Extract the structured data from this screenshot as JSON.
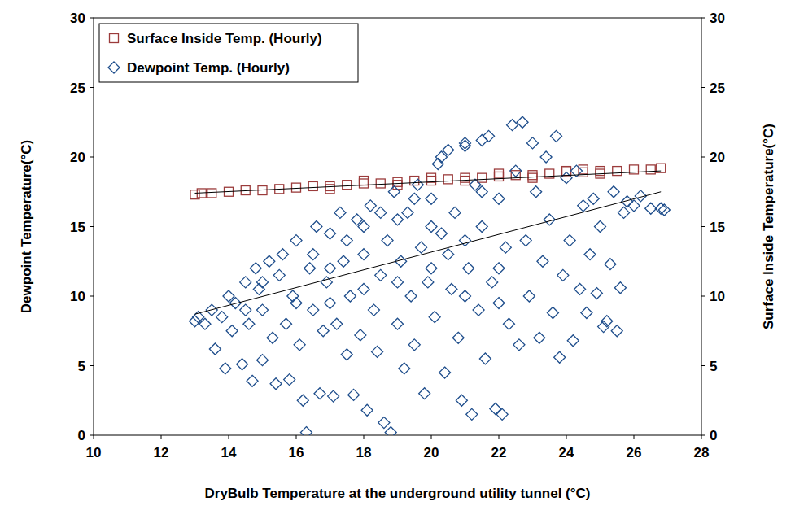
{
  "chart_data": {
    "type": "scatter",
    "x_label": "DryBulb Temperature at the underground utility tunnel (°C)",
    "y_label": "Dewpoint Temperature(°C)",
    "y2_label": "Surface Inside Temperature(°C)",
    "xlim": [
      10,
      28
    ],
    "xticks": [
      10,
      12,
      14,
      16,
      18,
      20,
      22,
      24,
      26,
      28
    ],
    "ylim": [
      0,
      30
    ],
    "yticks": [
      0,
      5,
      10,
      15,
      20,
      25,
      30
    ],
    "y2lim": [
      0,
      30
    ],
    "y2ticks": [
      0,
      5,
      10,
      15,
      20,
      25,
      30
    ],
    "grid": false,
    "legend": "top-left",
    "series": [
      {
        "name": "Surface Inside Temp. (Hourly)",
        "color": "#9b3b3b",
        "marker": "square",
        "axis": "y2",
        "x": [
          13.0,
          13.2,
          13.5,
          14.0,
          14.5,
          15.0,
          15.5,
          16.0,
          16.5,
          17.0,
          17.5,
          18.0,
          18.5,
          19.0,
          19.5,
          20.0,
          20.5,
          21.0,
          21.5,
          22.0,
          22.5,
          23.0,
          23.5,
          24.0,
          24.5,
          25.0,
          25.5,
          26.0,
          26.5,
          26.8,
          17.0,
          18.0,
          19.0,
          20.0,
          21.0,
          22.0,
          23.0,
          24.0,
          25.0,
          24.5
        ],
        "values": [
          17.3,
          17.4,
          17.4,
          17.5,
          17.6,
          17.6,
          17.7,
          17.8,
          17.9,
          17.9,
          18.0,
          18.1,
          18.1,
          18.2,
          18.3,
          18.3,
          18.4,
          18.5,
          18.5,
          18.6,
          18.7,
          18.7,
          18.8,
          18.9,
          18.9,
          19.0,
          19.0,
          19.1,
          19.1,
          19.2,
          17.7,
          18.3,
          18.0,
          18.5,
          18.3,
          18.8,
          18.5,
          19.0,
          18.8,
          19.1
        ],
        "trend": {
          "x": [
            13.0,
            26.8
          ],
          "values": [
            17.4,
            19.0
          ]
        }
      },
      {
        "name": "Dewpoint Temp. (Hourly)",
        "color": "#1f4e8c",
        "marker": "diamond",
        "x": [
          13.0,
          13.1,
          13.3,
          13.5,
          13.6,
          13.8,
          13.9,
          14.0,
          14.1,
          14.2,
          14.4,
          14.5,
          14.6,
          14.7,
          14.8,
          14.9,
          15.0,
          15.0,
          15.2,
          15.3,
          15.4,
          15.5,
          15.6,
          15.7,
          15.8,
          15.9,
          16.0,
          16.1,
          16.2,
          16.3,
          16.4,
          16.5,
          16.6,
          16.7,
          16.8,
          16.9,
          17.0,
          17.1,
          17.2,
          17.3,
          17.4,
          17.5,
          17.6,
          17.7,
          17.8,
          17.9,
          18.0,
          18.1,
          18.2,
          18.3,
          18.4,
          18.5,
          18.6,
          18.7,
          18.8,
          18.9,
          19.0,
          19.1,
          19.2,
          19.3,
          19.4,
          19.5,
          19.6,
          19.7,
          19.8,
          19.9,
          20.0,
          20.1,
          20.2,
          20.3,
          20.4,
          20.5,
          20.6,
          20.7,
          20.8,
          20.9,
          21.0,
          21.1,
          21.2,
          21.3,
          21.4,
          21.5,
          21.6,
          21.7,
          21.8,
          21.9,
          22.0,
          22.1,
          22.2,
          22.3,
          22.4,
          22.5,
          22.6,
          22.7,
          22.8,
          22.9,
          23.0,
          23.1,
          23.2,
          23.3,
          23.4,
          23.5,
          23.6,
          23.7,
          23.8,
          23.9,
          24.0,
          24.1,
          24.2,
          24.3,
          24.4,
          24.5,
          24.6,
          24.7,
          24.8,
          24.9,
          25.0,
          25.1,
          25.2,
          25.3,
          25.4,
          25.5,
          25.6,
          25.7,
          25.8,
          26.0,
          26.2,
          26.5,
          26.8,
          26.9,
          16.5,
          17.0,
          17.5,
          18.0,
          18.5,
          19.0,
          19.5,
          20.0,
          20.5,
          21.0,
          21.5,
          22.0,
          18.0,
          19.0,
          20.0,
          21.0,
          22.0,
          15.0,
          16.0,
          17.0,
          14.5,
          20.3,
          21.0,
          21.5
        ],
        "values": [
          8.2,
          8.5,
          8.0,
          9.0,
          6.2,
          8.5,
          4.8,
          10.0,
          7.5,
          9.5,
          5.1,
          11.0,
          8.0,
          3.9,
          12.0,
          10.5,
          5.4,
          9.0,
          12.5,
          7.0,
          3.7,
          11.5,
          13.0,
          8.0,
          4.0,
          10.0,
          14.0,
          6.5,
          2.5,
          0.2,
          12.0,
          9.0,
          15.0,
          3.0,
          7.5,
          11.0,
          14.5,
          2.8,
          8.0,
          16.0,
          12.5,
          5.8,
          10.0,
          2.9,
          15.5,
          7.2,
          13.0,
          1.8,
          16.5,
          9.0,
          6.0,
          11.5,
          0.9,
          14.0,
          0.2,
          17.5,
          8.0,
          12.5,
          4.8,
          16.0,
          10.0,
          6.5,
          18.0,
          13.5,
          3.0,
          11.0,
          17.0,
          8.5,
          19.5,
          14.5,
          4.5,
          20.5,
          10.5,
          16.0,
          7.0,
          2.5,
          21.0,
          12.0,
          1.5,
          18.0,
          9.0,
          15.0,
          5.5,
          21.5,
          11.0,
          1.9,
          17.0,
          1.5,
          13.5,
          8.0,
          22.3,
          19.0,
          6.5,
          22.5,
          14.0,
          10.0,
          21.0,
          17.5,
          7.0,
          12.5,
          20.0,
          15.5,
          8.8,
          21.5,
          5.6,
          11.5,
          18.5,
          14.0,
          6.8,
          19.0,
          10.5,
          16.5,
          8.8,
          13.0,
          17.0,
          10.2,
          15.0,
          7.8,
          8.2,
          12.3,
          17.5,
          7.5,
          10.6,
          16.0,
          16.8,
          16.5,
          17.2,
          16.3,
          16.3,
          16.2,
          13.0,
          12.0,
          14.0,
          15.0,
          16.0,
          15.5,
          17.0,
          15.0,
          13.0,
          14.0,
          17.5,
          12.0,
          10.5,
          11.0,
          12.0,
          10.0,
          9.5,
          11.0,
          9.5,
          9.5,
          9.0,
          20.0,
          20.8,
          21.2
        ],
        "trend": {
          "x": [
            13.0,
            26.8
          ],
          "values": [
            8.7,
            17.5
          ]
        }
      }
    ]
  }
}
